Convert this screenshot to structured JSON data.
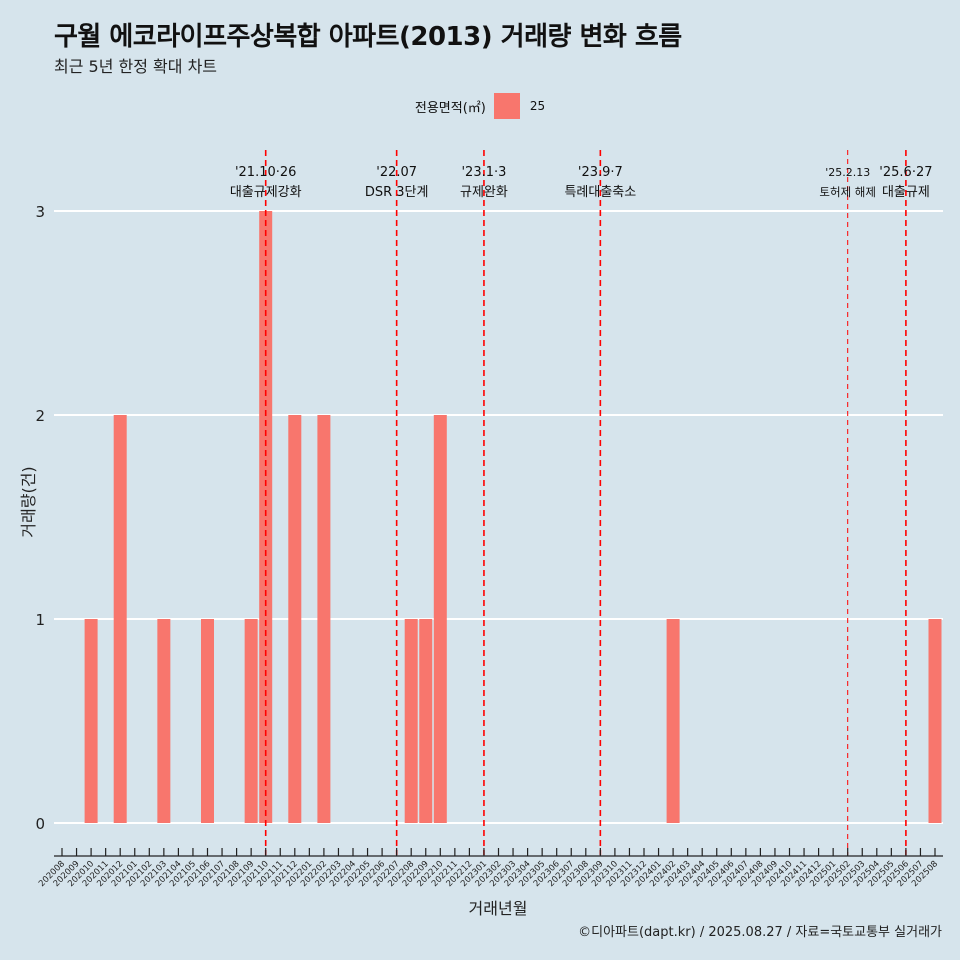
{
  "title": "구월 에코라이프주상복합 아파트(2013) 거래량 변화 흐름",
  "subtitle": "최근 5년 한정 확대 차트",
  "caption": "©디아파트(dapt.kr) / 2025.08.27 / 자료=국토교통부 실거래가",
  "colors": {
    "background": "#d6e4ec",
    "bar": "#f8766d",
    "gridline": "#ffffff",
    "event_line": "#ff0000"
  },
  "chart_data": {
    "type": "bar",
    "xlabel": "거래년월",
    "ylabel": "거래량(건)",
    "ylim": [
      0,
      3
    ],
    "yticks": [
      0,
      1,
      2,
      3
    ],
    "legend": {
      "title": "전용면적(㎡)",
      "position": "top",
      "entries": [
        "25"
      ]
    },
    "categories": [
      "202008",
      "202009",
      "202010",
      "202011",
      "202012",
      "202101",
      "202102",
      "202103",
      "202104",
      "202105",
      "202106",
      "202107",
      "202108",
      "202109",
      "202110",
      "202111",
      "202112",
      "202201",
      "202202",
      "202203",
      "202204",
      "202205",
      "202206",
      "202207",
      "202208",
      "202209",
      "202210",
      "202211",
      "202212",
      "202301",
      "202302",
      "202303",
      "202304",
      "202305",
      "202306",
      "202307",
      "202308",
      "202309",
      "202310",
      "202311",
      "202312",
      "202401",
      "202402",
      "202403",
      "202404",
      "202405",
      "202406",
      "202407",
      "202408",
      "202409",
      "202410",
      "202411",
      "202412",
      "202501",
      "202502",
      "202503",
      "202504",
      "202505",
      "202506",
      "202507",
      "202508"
    ],
    "series": [
      {
        "name": "25",
        "values": [
          0,
          0,
          1,
          0,
          2,
          0,
          0,
          1,
          0,
          0,
          1,
          0,
          0,
          1,
          3,
          0,
          2,
          0,
          2,
          0,
          0,
          0,
          0,
          0,
          1,
          1,
          2,
          0,
          0,
          0,
          0,
          0,
          0,
          0,
          0,
          0,
          0,
          0,
          0,
          0,
          0,
          0,
          1,
          0,
          0,
          0,
          0,
          0,
          0,
          0,
          0,
          0,
          0,
          0,
          0,
          0,
          0,
          0,
          0,
          0,
          1
        ]
      }
    ],
    "bar_categories": [
      "202010",
      "202012",
      "202103",
      "202106",
      "202109",
      "202110",
      "202112",
      "202202",
      "202208",
      "202209",
      "202210",
      "202402",
      "202508"
    ],
    "bar_values": [
      1,
      2,
      1,
      1,
      1,
      3,
      2,
      2,
      1,
      1,
      2,
      1,
      1
    ],
    "events": [
      {
        "date": "'21.10·26",
        "label": "대출규제강화",
        "month": "202110",
        "style": "major"
      },
      {
        "date": "'22.07",
        "label": "DSR 3단계",
        "month": "202207",
        "style": "major"
      },
      {
        "date": "'23.1·3",
        "label": "규제완화",
        "month": "202301",
        "style": "major"
      },
      {
        "date": "'23.9·7",
        "label": "특례대출축소",
        "month": "202309",
        "style": "major"
      },
      {
        "date": "'25.2.13",
        "label": "토허제 해제",
        "month": "202502",
        "style": "minor"
      },
      {
        "date": "'25.6·27",
        "label": "대출규제",
        "month": "202506",
        "style": "major"
      }
    ]
  }
}
